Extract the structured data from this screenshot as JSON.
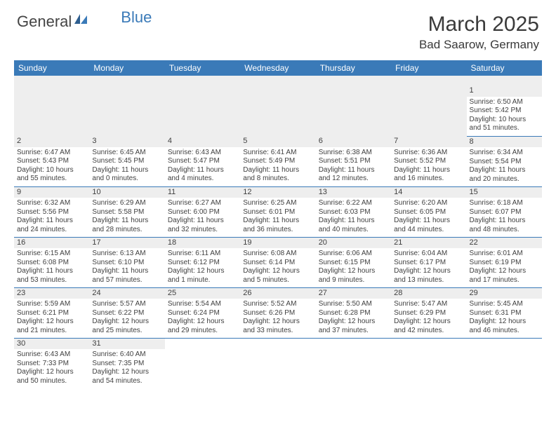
{
  "logo": {
    "text1": "General",
    "text2": "Blue"
  },
  "title": "March 2025",
  "location": "Bad Saarow, Germany",
  "colors": {
    "accent": "#3a7ab8",
    "shade": "#eeeeee",
    "text": "#3a3a3a"
  },
  "weekdays": [
    "Sunday",
    "Monday",
    "Tuesday",
    "Wednesday",
    "Thursday",
    "Friday",
    "Saturday"
  ],
  "weeks": [
    [
      null,
      null,
      null,
      null,
      null,
      null,
      {
        "n": "1",
        "sr": "Sunrise: 6:50 AM",
        "ss": "Sunset: 5:42 PM",
        "d1": "Daylight: 10 hours",
        "d2": "and 51 minutes."
      }
    ],
    [
      {
        "n": "2",
        "sr": "Sunrise: 6:47 AM",
        "ss": "Sunset: 5:43 PM",
        "d1": "Daylight: 10 hours",
        "d2": "and 55 minutes."
      },
      {
        "n": "3",
        "sr": "Sunrise: 6:45 AM",
        "ss": "Sunset: 5:45 PM",
        "d1": "Daylight: 11 hours",
        "d2": "and 0 minutes."
      },
      {
        "n": "4",
        "sr": "Sunrise: 6:43 AM",
        "ss": "Sunset: 5:47 PM",
        "d1": "Daylight: 11 hours",
        "d2": "and 4 minutes."
      },
      {
        "n": "5",
        "sr": "Sunrise: 6:41 AM",
        "ss": "Sunset: 5:49 PM",
        "d1": "Daylight: 11 hours",
        "d2": "and 8 minutes."
      },
      {
        "n": "6",
        "sr": "Sunrise: 6:38 AM",
        "ss": "Sunset: 5:51 PM",
        "d1": "Daylight: 11 hours",
        "d2": "and 12 minutes."
      },
      {
        "n": "7",
        "sr": "Sunrise: 6:36 AM",
        "ss": "Sunset: 5:52 PM",
        "d1": "Daylight: 11 hours",
        "d2": "and 16 minutes."
      },
      {
        "n": "8",
        "sr": "Sunrise: 6:34 AM",
        "ss": "Sunset: 5:54 PM",
        "d1": "Daylight: 11 hours",
        "d2": "and 20 minutes."
      }
    ],
    [
      {
        "n": "9",
        "sr": "Sunrise: 6:32 AM",
        "ss": "Sunset: 5:56 PM",
        "d1": "Daylight: 11 hours",
        "d2": "and 24 minutes."
      },
      {
        "n": "10",
        "sr": "Sunrise: 6:29 AM",
        "ss": "Sunset: 5:58 PM",
        "d1": "Daylight: 11 hours",
        "d2": "and 28 minutes."
      },
      {
        "n": "11",
        "sr": "Sunrise: 6:27 AM",
        "ss": "Sunset: 6:00 PM",
        "d1": "Daylight: 11 hours",
        "d2": "and 32 minutes."
      },
      {
        "n": "12",
        "sr": "Sunrise: 6:25 AM",
        "ss": "Sunset: 6:01 PM",
        "d1": "Daylight: 11 hours",
        "d2": "and 36 minutes."
      },
      {
        "n": "13",
        "sr": "Sunrise: 6:22 AM",
        "ss": "Sunset: 6:03 PM",
        "d1": "Daylight: 11 hours",
        "d2": "and 40 minutes."
      },
      {
        "n": "14",
        "sr": "Sunrise: 6:20 AM",
        "ss": "Sunset: 6:05 PM",
        "d1": "Daylight: 11 hours",
        "d2": "and 44 minutes."
      },
      {
        "n": "15",
        "sr": "Sunrise: 6:18 AM",
        "ss": "Sunset: 6:07 PM",
        "d1": "Daylight: 11 hours",
        "d2": "and 48 minutes."
      }
    ],
    [
      {
        "n": "16",
        "sr": "Sunrise: 6:15 AM",
        "ss": "Sunset: 6:08 PM",
        "d1": "Daylight: 11 hours",
        "d2": "and 53 minutes."
      },
      {
        "n": "17",
        "sr": "Sunrise: 6:13 AM",
        "ss": "Sunset: 6:10 PM",
        "d1": "Daylight: 11 hours",
        "d2": "and 57 minutes."
      },
      {
        "n": "18",
        "sr": "Sunrise: 6:11 AM",
        "ss": "Sunset: 6:12 PM",
        "d1": "Daylight: 12 hours",
        "d2": "and 1 minute."
      },
      {
        "n": "19",
        "sr": "Sunrise: 6:08 AM",
        "ss": "Sunset: 6:14 PM",
        "d1": "Daylight: 12 hours",
        "d2": "and 5 minutes."
      },
      {
        "n": "20",
        "sr": "Sunrise: 6:06 AM",
        "ss": "Sunset: 6:15 PM",
        "d1": "Daylight: 12 hours",
        "d2": "and 9 minutes."
      },
      {
        "n": "21",
        "sr": "Sunrise: 6:04 AM",
        "ss": "Sunset: 6:17 PM",
        "d1": "Daylight: 12 hours",
        "d2": "and 13 minutes."
      },
      {
        "n": "22",
        "sr": "Sunrise: 6:01 AM",
        "ss": "Sunset: 6:19 PM",
        "d1": "Daylight: 12 hours",
        "d2": "and 17 minutes."
      }
    ],
    [
      {
        "n": "23",
        "sr": "Sunrise: 5:59 AM",
        "ss": "Sunset: 6:21 PM",
        "d1": "Daylight: 12 hours",
        "d2": "and 21 minutes."
      },
      {
        "n": "24",
        "sr": "Sunrise: 5:57 AM",
        "ss": "Sunset: 6:22 PM",
        "d1": "Daylight: 12 hours",
        "d2": "and 25 minutes."
      },
      {
        "n": "25",
        "sr": "Sunrise: 5:54 AM",
        "ss": "Sunset: 6:24 PM",
        "d1": "Daylight: 12 hours",
        "d2": "and 29 minutes."
      },
      {
        "n": "26",
        "sr": "Sunrise: 5:52 AM",
        "ss": "Sunset: 6:26 PM",
        "d1": "Daylight: 12 hours",
        "d2": "and 33 minutes."
      },
      {
        "n": "27",
        "sr": "Sunrise: 5:50 AM",
        "ss": "Sunset: 6:28 PM",
        "d1": "Daylight: 12 hours",
        "d2": "and 37 minutes."
      },
      {
        "n": "28",
        "sr": "Sunrise: 5:47 AM",
        "ss": "Sunset: 6:29 PM",
        "d1": "Daylight: 12 hours",
        "d2": "and 42 minutes."
      },
      {
        "n": "29",
        "sr": "Sunrise: 5:45 AM",
        "ss": "Sunset: 6:31 PM",
        "d1": "Daylight: 12 hours",
        "d2": "and 46 minutes."
      }
    ],
    [
      {
        "n": "30",
        "sr": "Sunrise: 6:43 AM",
        "ss": "Sunset: 7:33 PM",
        "d1": "Daylight: 12 hours",
        "d2": "and 50 minutes."
      },
      {
        "n": "31",
        "sr": "Sunrise: 6:40 AM",
        "ss": "Sunset: 7:35 PM",
        "d1": "Daylight: 12 hours",
        "d2": "and 54 minutes."
      },
      null,
      null,
      null,
      null,
      null
    ]
  ]
}
